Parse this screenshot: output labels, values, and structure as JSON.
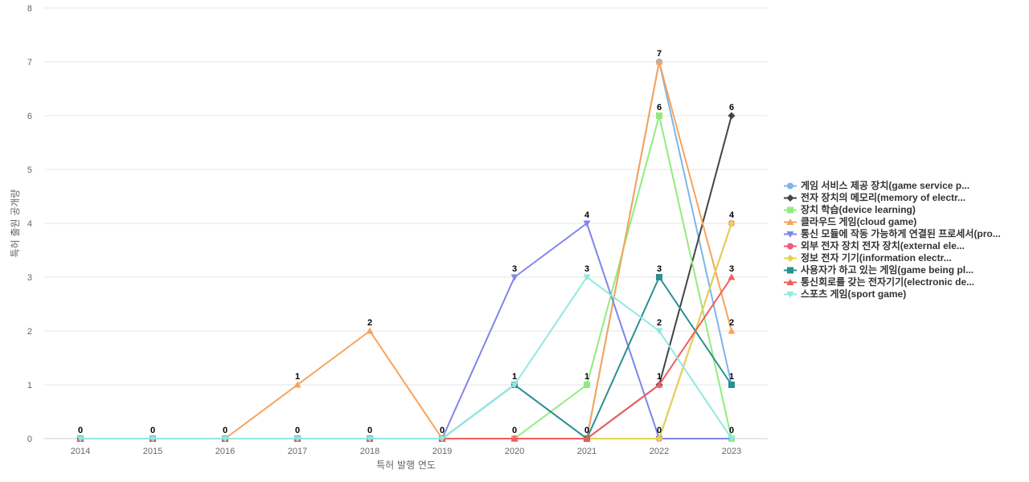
{
  "chart_data": {
    "type": "line",
    "title": "",
    "xlabel": "특허 발행 연도",
    "ylabel": "특허 출원 공개량",
    "ylim": [
      0,
      8
    ],
    "y_ticks": [
      "0",
      "1",
      "2",
      "3",
      "4",
      "5",
      "6",
      "7",
      "8"
    ],
    "categories": [
      "2014",
      "2015",
      "2016",
      "2017",
      "2018",
      "2019",
      "2020",
      "2021",
      "2022",
      "2023"
    ],
    "grid": "horizontal",
    "legend_position": "right",
    "series": [
      {
        "name": "게임 서비스 제공 장치(game service p...",
        "color": "#7cb5ec",
        "marker": "circle",
        "values": [
          0,
          0,
          0,
          0,
          0,
          0,
          1,
          0,
          7,
          1
        ]
      },
      {
        "name": "전자 장치의 메모리(memory of electr...",
        "color": "#434348",
        "marker": "diamond",
        "values": [
          0,
          0,
          0,
          0,
          0,
          0,
          0,
          0,
          1,
          6
        ]
      },
      {
        "name": "장치 학습(device learning)",
        "color": "#90ed7d",
        "marker": "square",
        "values": [
          0,
          0,
          0,
          0,
          0,
          0,
          0,
          1,
          6,
          0
        ]
      },
      {
        "name": "클라우드 게임(cloud game)",
        "color": "#f7a35c",
        "marker": "triangle",
        "values": [
          0,
          0,
          0,
          1,
          2,
          0,
          0,
          0,
          7,
          2
        ]
      },
      {
        "name": "통신 모듈에 작동 가능하게 연결된 프로세서(pro...",
        "color": "#8085e9",
        "marker": "triangle-down",
        "values": [
          0,
          0,
          0,
          0,
          0,
          0,
          3,
          4,
          0,
          0
        ]
      },
      {
        "name": "외부 전자 장치 전자 장치(external ele...",
        "color": "#f15c80",
        "marker": "circle",
        "values": [
          0,
          0,
          0,
          0,
          0,
          0,
          0,
          0,
          0,
          4
        ]
      },
      {
        "name": "정보 전자 기기(information electr...",
        "color": "#e4d354",
        "marker": "diamond",
        "values": [
          0,
          0,
          0,
          0,
          0,
          0,
          0,
          0,
          0,
          4
        ]
      },
      {
        "name": "사용자가 하고 있는 게임(game being pl...",
        "color": "#2b908f",
        "marker": "square",
        "values": [
          0,
          0,
          0,
          0,
          0,
          0,
          1,
          0,
          3,
          1
        ]
      },
      {
        "name": "통신회로를 갖는 전자기기(electronic de...",
        "color": "#f45b5b",
        "marker": "triangle",
        "values": [
          0,
          0,
          0,
          0,
          0,
          0,
          0,
          0,
          1,
          3
        ]
      },
      {
        "name": "스포츠 게임(sport game)",
        "color": "#91e8e1",
        "marker": "triangle-down",
        "values": [
          0,
          0,
          0,
          0,
          0,
          0,
          1,
          3,
          2,
          0
        ]
      }
    ],
    "data_labels": [
      {
        "x": "2014",
        "text": "0"
      },
      {
        "x": "2015",
        "text": "0"
      },
      {
        "x": "2016",
        "text": "0"
      },
      {
        "x": "2017",
        "text": "0"
      },
      {
        "x": "2017",
        "text": "1"
      },
      {
        "x": "2018",
        "text": "0"
      },
      {
        "x": "2018",
        "text": "2"
      },
      {
        "x": "2019",
        "text": "0"
      },
      {
        "x": "2020",
        "text": "0"
      },
      {
        "x": "2020",
        "text": "1"
      },
      {
        "x": "2020",
        "text": "3"
      },
      {
        "x": "2021",
        "text": "0"
      },
      {
        "x": "2021",
        "text": "1"
      },
      {
        "x": "2021",
        "text": "3"
      },
      {
        "x": "2021",
        "text": "4"
      },
      {
        "x": "2022",
        "text": "0"
      },
      {
        "x": "2022",
        "text": "1"
      },
      {
        "x": "2022",
        "text": "2"
      },
      {
        "x": "2022",
        "text": "3"
      },
      {
        "x": "2022",
        "text": "6"
      },
      {
        "x": "2022",
        "text": "7"
      },
      {
        "x": "2023",
        "text": "0"
      },
      {
        "x": "2023",
        "text": "1"
      },
      {
        "x": "2023",
        "text": "2"
      },
      {
        "x": "2023",
        "text": "3"
      },
      {
        "x": "2023",
        "text": "4"
      },
      {
        "x": "2023",
        "text": "6"
      }
    ]
  }
}
